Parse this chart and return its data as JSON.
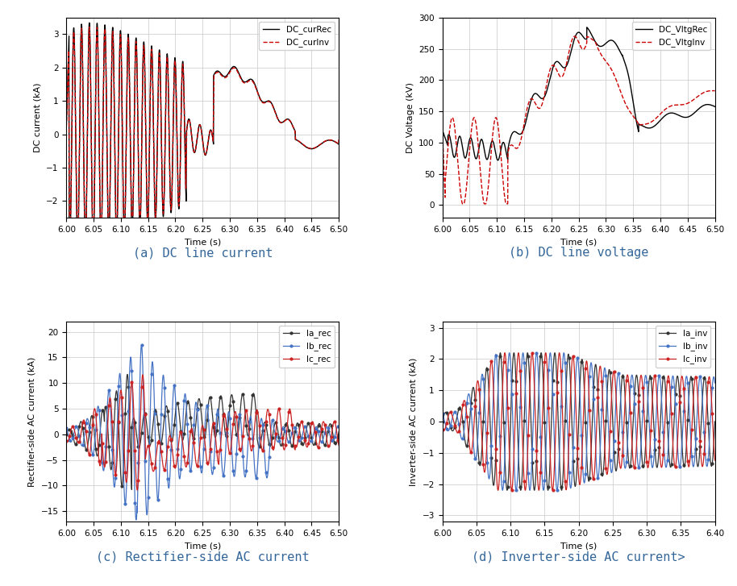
{
  "fig_width": 9.14,
  "fig_height": 7.27,
  "background_color": "#ffffff",
  "grid_color": "#c8c8c8",
  "subplots": [
    {
      "xlabel": "Time (s)",
      "ylabel": "DC current (kA)",
      "xlim": [
        6.0,
        6.5
      ],
      "ylim": [
        -2.5,
        3.5
      ],
      "xticks": [
        6.0,
        6.05,
        6.1,
        6.15,
        6.2,
        6.25,
        6.3,
        6.35,
        6.4,
        6.45,
        6.5
      ],
      "yticks": [
        -2,
        -1,
        0,
        1,
        2,
        3
      ],
      "legend": [
        {
          "label": "DC_curRec",
          "color": "#000000",
          "linestyle": "solid",
          "linewidth": 1.0
        },
        {
          "label": "DC_curInv",
          "color": "#cc0000",
          "linestyle": "dashed",
          "linewidth": 1.0
        }
      ]
    },
    {
      "xlabel": "Time (s)",
      "ylabel": "DC Voltage (kV)",
      "xlim": [
        6.0,
        6.5
      ],
      "ylim": [
        -20,
        300
      ],
      "xticks": [
        6.0,
        6.05,
        6.1,
        6.15,
        6.2,
        6.25,
        6.3,
        6.35,
        6.4,
        6.45,
        6.5
      ],
      "yticks": [
        0,
        50,
        100,
        150,
        200,
        250,
        300
      ],
      "legend": [
        {
          "label": "DC_VltgRec",
          "color": "#000000",
          "linestyle": "solid",
          "linewidth": 1.0
        },
        {
          "label": "DC_VltgInv",
          "color": "#cc0000",
          "linestyle": "dashed",
          "linewidth": 1.0
        }
      ]
    },
    {
      "xlabel": "Time (s)",
      "ylabel": "Rectifier-side AC current (kA)",
      "xlim": [
        6.0,
        6.5
      ],
      "ylim": [
        -17,
        22
      ],
      "xticks": [
        6.0,
        6.05,
        6.1,
        6.15,
        6.2,
        6.25,
        6.3,
        6.35,
        6.4,
        6.45,
        6.5
      ],
      "yticks": [
        -15,
        -10,
        -5,
        0,
        5,
        10,
        15,
        20
      ],
      "legend": [
        {
          "label": "Ia_rec",
          "color": "#333333",
          "linestyle": "solid",
          "linewidth": 0.9
        },
        {
          "label": "Ib_rec",
          "color": "#4472c4",
          "linestyle": "solid",
          "linewidth": 0.9
        },
        {
          "label": "Ic_rec",
          "color": "#cc2222",
          "linestyle": "solid",
          "linewidth": 0.9
        }
      ]
    },
    {
      "xlabel": "Time (s)",
      "ylabel": "Inverter-side AC current (kA)",
      "xlim": [
        6.0,
        6.4
      ],
      "ylim": [
        -3.2,
        3.2
      ],
      "xticks": [
        6.0,
        6.05,
        6.1,
        6.15,
        6.2,
        6.25,
        6.3,
        6.35,
        6.4
      ],
      "yticks": [
        -3,
        -2,
        -1,
        0,
        1,
        2,
        3
      ],
      "legend": [
        {
          "label": "Ia_inv",
          "color": "#333333",
          "linestyle": "solid",
          "linewidth": 0.9
        },
        {
          "label": "Ib_inv",
          "color": "#4472c4",
          "linestyle": "solid",
          "linewidth": 0.9
        },
        {
          "label": "Ic_inv",
          "color": "#cc2222",
          "linestyle": "solid",
          "linewidth": 0.9
        }
      ]
    }
  ],
  "caption_color": "#336699",
  "caption_fontsize": 11,
  "captions": [
    "(a) DC line current",
    "(b) DC line voltage",
    "(c) Rectifier-side AC current",
    "(d) Inverter-side AC current>"
  ]
}
